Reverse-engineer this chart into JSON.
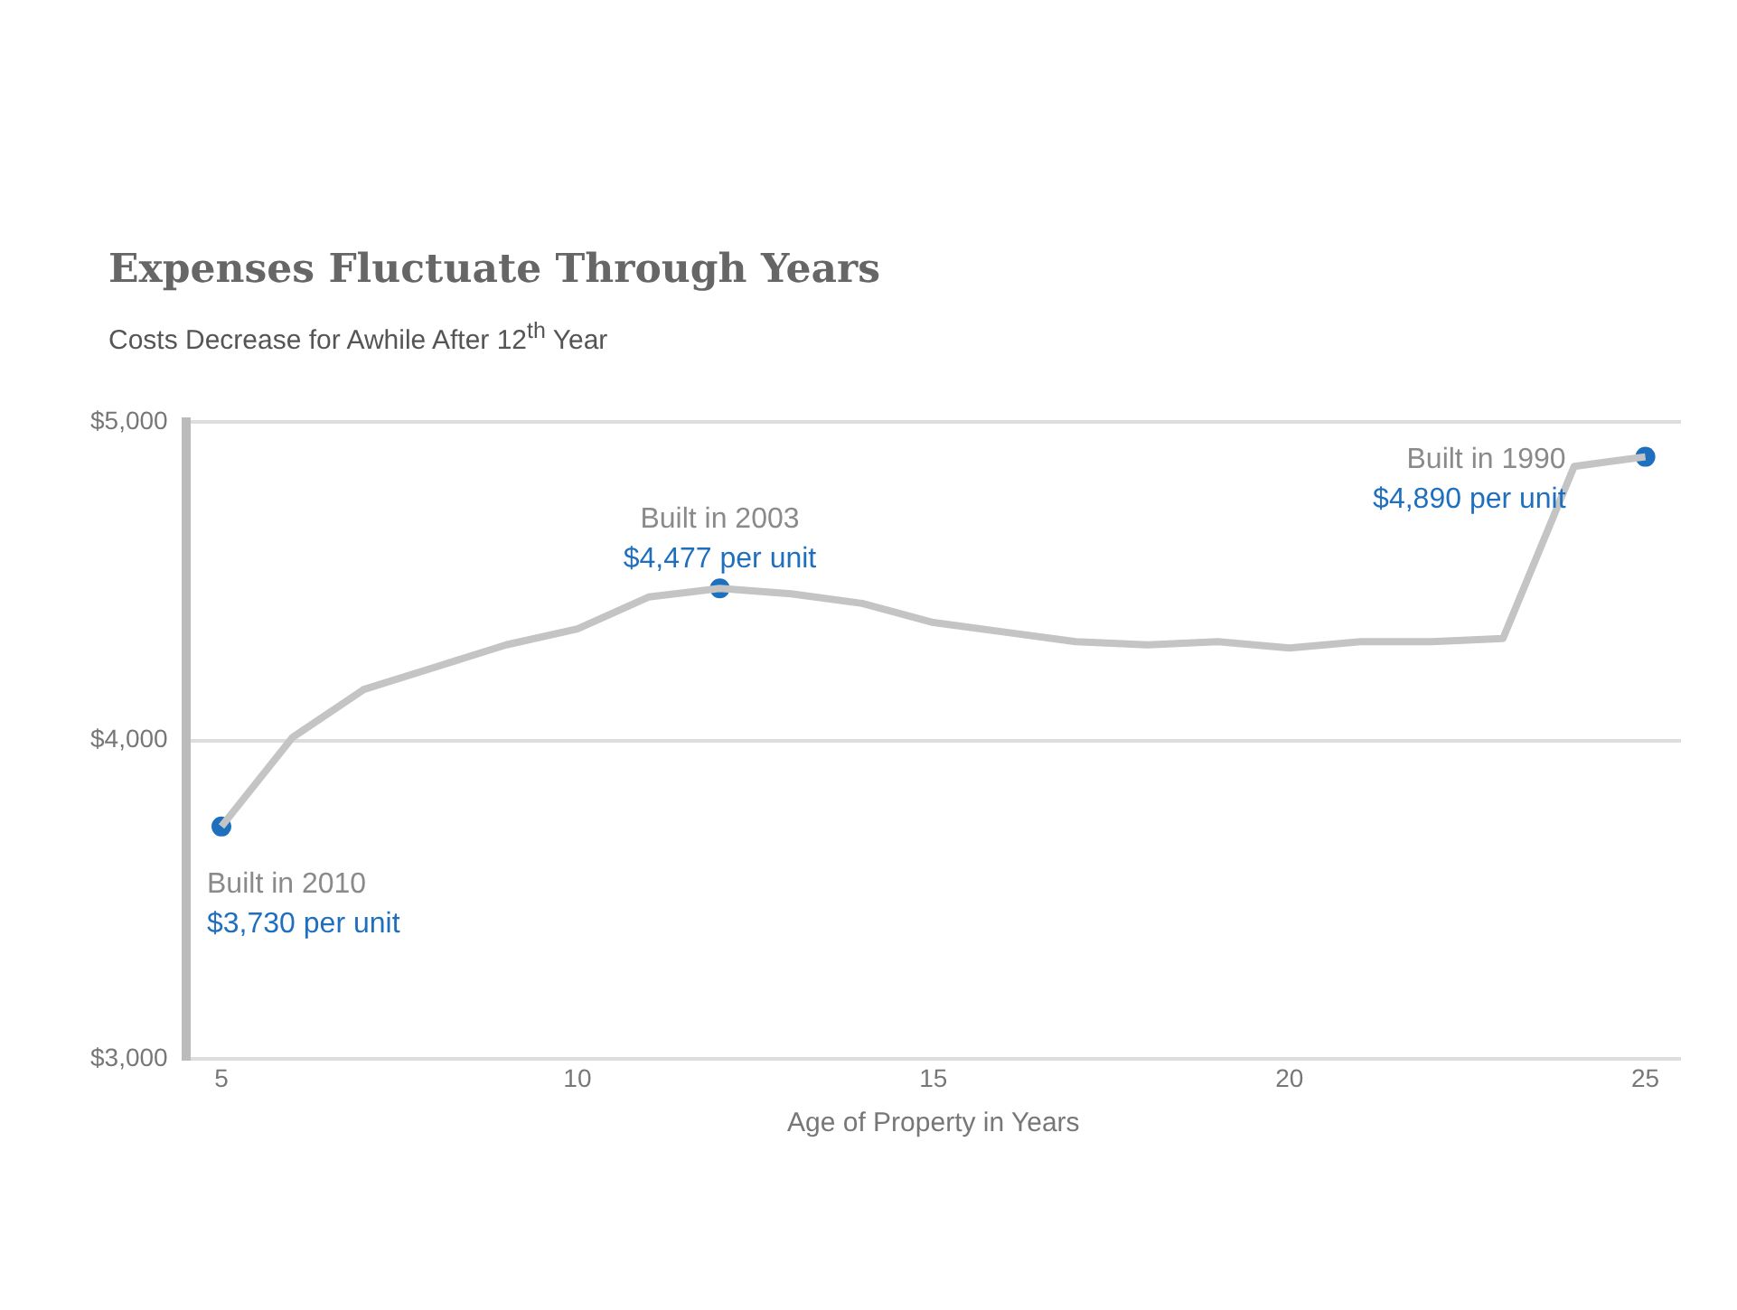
{
  "chart_data": {
    "type": "line",
    "title": "Expenses Fluctuate Through Years",
    "subtitle": "Costs Decrease for Awhile After 12$^{th}$ Year",
    "xlabel": "Age of Property in Years",
    "xlim": [
      4.5,
      25.5
    ],
    "xticks": [
      5,
      10,
      15,
      20,
      25
    ],
    "ylim": [
      3000,
      5000
    ],
    "yticks": [
      {
        "value": 3000,
        "label": "$3,000"
      },
      {
        "value": 4000,
        "label": "$4,000"
      },
      {
        "value": 5000,
        "label": "$5,000"
      }
    ],
    "grid": "y",
    "legend": false,
    "line_style": "solid",
    "marker": "none",
    "series": [
      {
        "type": "line",
        "color": "#c4c4c4",
        "x": [
          5,
          6,
          7,
          8,
          9,
          10,
          11,
          12,
          13,
          14,
          15,
          16,
          17,
          18,
          19,
          20,
          21,
          22,
          23,
          24,
          25
        ],
        "values": [
          3730,
          4010,
          4160,
          4230,
          4300,
          4350,
          4450,
          4477,
          4460,
          4430,
          4370,
          4340,
          4310,
          4300,
          4310,
          4290,
          4310,
          4310,
          4320,
          4860,
          4890
        ]
      },
      {
        "type": "scatter",
        "color": "#1f6fbf",
        "marker": "circle",
        "x": [
          5,
          12,
          25
        ],
        "values": [
          3730,
          4477,
          4890
        ]
      }
    ],
    "annotations": [
      {
        "text": "Built in 2010\n$3,730 per unit",
        "x": 5,
        "y": 3730
      },
      {
        "text": "Built in 2003\n$4,477 per unit",
        "x": 12,
        "y": 4477
      },
      {
        "text": "Built in 1990\n$4,890 per unit",
        "x": 25,
        "y": 4890
      }
    ]
  }
}
